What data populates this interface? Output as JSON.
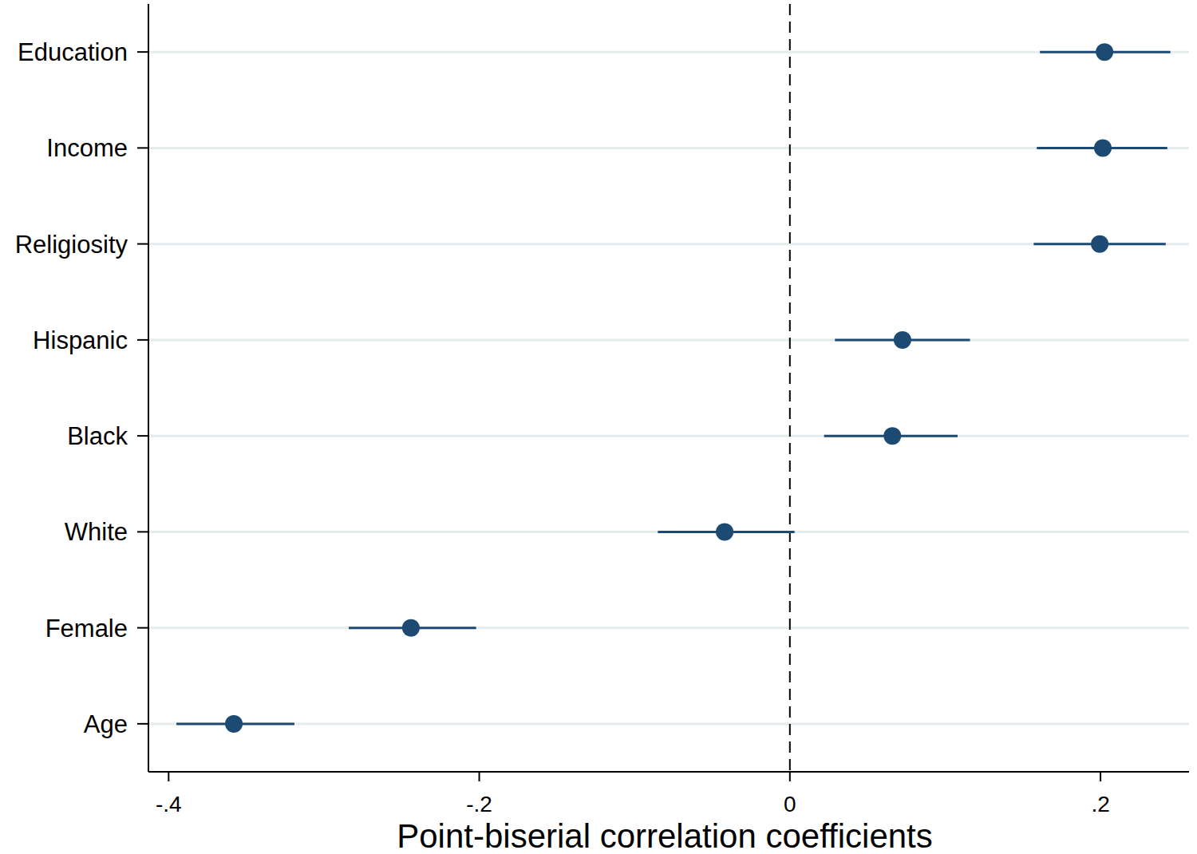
{
  "chart_data": {
    "type": "dot",
    "orientation": "horizontal",
    "x_label": "Point-biserial correlation coefficients",
    "categories": [
      "Education",
      "Income",
      "Religiosity",
      "Hispanic",
      "Black",
      "White",
      "Female",
      "Age"
    ],
    "values": [
      0.2026,
      0.2015,
      0.1995,
      0.0725,
      0.066,
      -0.042,
      -0.244,
      -0.358
    ],
    "ci_lower": [
      0.161,
      0.159,
      0.157,
      0.029,
      0.022,
      -0.085,
      -0.284,
      -0.395
    ],
    "ci_upper": [
      0.245,
      0.243,
      0.242,
      0.116,
      0.108,
      0.003,
      -0.202,
      -0.319
    ],
    "reference_line": 0,
    "color": "#1c4a72",
    "xlim": [
      -0.413,
      0.257
    ],
    "xticks": [
      {
        "value": -0.4,
        "label": "-.4"
      },
      {
        "value": -0.2,
        "label": "-.2"
      },
      0,
      {
        "value": 0.2,
        "label": ".2"
      }
    ],
    "grid": true
  }
}
